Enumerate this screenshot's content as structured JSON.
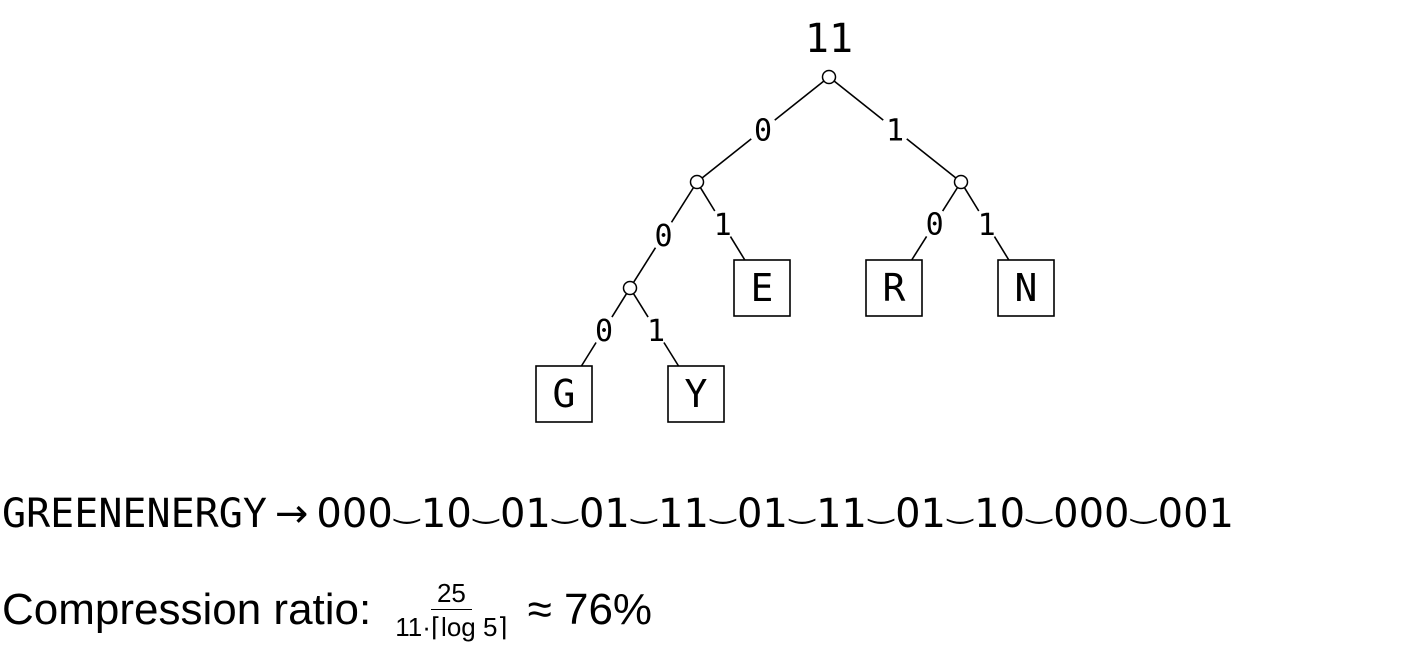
{
  "tree": {
    "root_label": "11",
    "edge_labels": {
      "zero": "0",
      "one": "1"
    },
    "nodes": [
      {
        "id": "root",
        "type": "internal"
      },
      {
        "id": "n0",
        "type": "internal"
      },
      {
        "id": "n1",
        "type": "internal"
      },
      {
        "id": "n00",
        "type": "internal"
      },
      {
        "id": "n000",
        "type": "leaf",
        "label": "G"
      },
      {
        "id": "n001",
        "type": "leaf",
        "label": "Y"
      },
      {
        "id": "n01",
        "type": "leaf",
        "label": "E"
      },
      {
        "id": "n10",
        "type": "leaf",
        "label": "R"
      },
      {
        "id": "n11",
        "type": "leaf",
        "label": "N"
      }
    ],
    "edges": [
      {
        "from": "root",
        "to": "n0",
        "bit": "0"
      },
      {
        "from": "root",
        "to": "n1",
        "bit": "1"
      },
      {
        "from": "n0",
        "to": "n00",
        "bit": "0"
      },
      {
        "from": "n0",
        "to": "n01",
        "bit": "1"
      },
      {
        "from": "n1",
        "to": "n10",
        "bit": "0"
      },
      {
        "from": "n1",
        "to": "n11",
        "bit": "1"
      },
      {
        "from": "n00",
        "to": "n000",
        "bit": "0"
      },
      {
        "from": "n00",
        "to": "n001",
        "bit": "1"
      }
    ]
  },
  "encoding": {
    "word": "GREENENERGY",
    "arrow": "→",
    "tie": "‿",
    "codes": [
      "000",
      "10",
      "01",
      "01",
      "11",
      "01",
      "11",
      "01",
      "10",
      "000",
      "001"
    ]
  },
  "ratio": {
    "label": "Compression ratio:",
    "numerator": "25",
    "denominator": "11·⌈log 5⌉",
    "approx": "≈ 76%"
  }
}
